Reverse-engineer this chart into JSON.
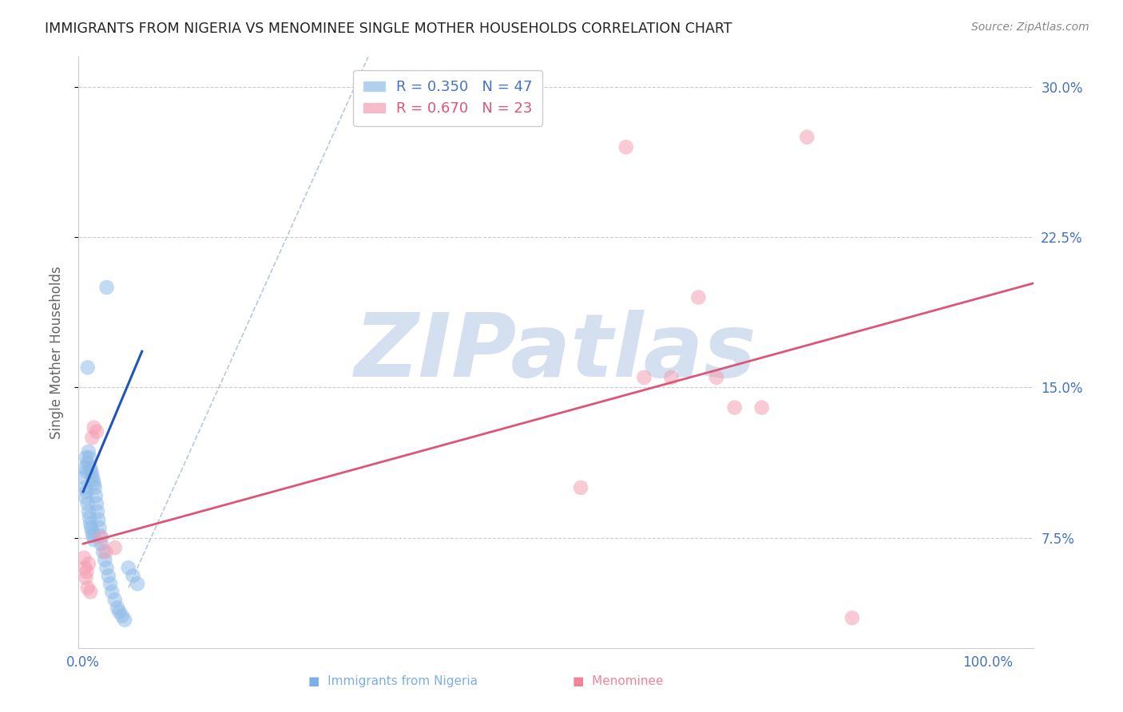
{
  "title": "IMMIGRANTS FROM NIGERIA VS MENOMINEE SINGLE MOTHER HOUSEHOLDS CORRELATION CHART",
  "source": "Source: ZipAtlas.com",
  "ylabel": "Single Mother Households",
  "xlim": [
    -0.005,
    1.05
  ],
  "ylim": [
    0.02,
    0.315
  ],
  "right_ytick_vals": [
    0.075,
    0.15,
    0.225,
    0.3
  ],
  "right_yticklabels": [
    "7.5%",
    "15.0%",
    "22.5%",
    "30.0%"
  ],
  "xtick_vals": [
    0.0,
    0.25,
    0.5,
    0.75,
    1.0
  ],
  "xticklabels": [
    "0.0%",
    "",
    "",
    "",
    "100.0%"
  ],
  "blue_scatter_x": [
    0.001,
    0.002,
    0.002,
    0.003,
    0.003,
    0.004,
    0.004,
    0.005,
    0.005,
    0.006,
    0.006,
    0.007,
    0.007,
    0.008,
    0.008,
    0.009,
    0.009,
    0.01,
    0.01,
    0.011,
    0.011,
    0.012,
    0.012,
    0.013,
    0.014,
    0.015,
    0.016,
    0.017,
    0.018,
    0.019,
    0.02,
    0.022,
    0.024,
    0.026,
    0.028,
    0.03,
    0.032,
    0.035,
    0.038,
    0.04,
    0.043,
    0.046,
    0.05,
    0.055,
    0.06,
    0.026,
    0.005
  ],
  "blue_scatter_y": [
    0.105,
    0.11,
    0.1,
    0.115,
    0.095,
    0.108,
    0.098,
    0.112,
    0.092,
    0.118,
    0.088,
    0.115,
    0.085,
    0.11,
    0.082,
    0.108,
    0.08,
    0.106,
    0.078,
    0.104,
    0.076,
    0.102,
    0.074,
    0.1,
    0.096,
    0.092,
    0.088,
    0.084,
    0.08,
    0.076,
    0.072,
    0.068,
    0.064,
    0.06,
    0.056,
    0.052,
    0.048,
    0.044,
    0.04,
    0.038,
    0.036,
    0.034,
    0.06,
    0.056,
    0.052,
    0.2,
    0.16
  ],
  "pink_scatter_x": [
    0.001,
    0.002,
    0.003,
    0.004,
    0.005,
    0.006,
    0.008,
    0.01,
    0.012,
    0.015,
    0.02,
    0.025,
    0.035,
    0.55,
    0.6,
    0.62,
    0.65,
    0.68,
    0.7,
    0.72,
    0.75,
    0.8,
    0.85
  ],
  "pink_scatter_y": [
    0.065,
    0.06,
    0.055,
    0.058,
    0.05,
    0.062,
    0.048,
    0.125,
    0.13,
    0.128,
    0.075,
    0.068,
    0.07,
    0.1,
    0.27,
    0.155,
    0.155,
    0.195,
    0.155,
    0.14,
    0.14,
    0.275,
    0.035
  ],
  "blue_line_x": [
    0.0,
    0.065
  ],
  "blue_line_y": [
    0.098,
    0.168
  ],
  "pink_line_x": [
    0.0,
    1.05
  ],
  "pink_line_y": [
    0.072,
    0.202
  ],
  "diag_line_x": [
    0.05,
    0.315
  ],
  "diag_line_y": [
    0.05,
    0.315
  ],
  "watermark_text": "ZIPatlas",
  "watermark_color": "#d0dcee",
  "bg_color": "#ffffff",
  "grid_color": "#cccccc",
  "blue_dot_color": "#90bce8",
  "pink_dot_color": "#f4a0b4",
  "blue_line_color": "#2255bb",
  "pink_line_color": "#dd5577",
  "diag_line_color": "#b8c8dc",
  "tick_label_color": "#4472c4",
  "title_color": "#222222",
  "source_color": "#888888",
  "ylabel_color": "#666666",
  "legend_border_color": "#cccccc",
  "legend_blue_text_color": "#4472c4",
  "legend_pink_text_color": "#dd5577",
  "bottom_legend_blue_color": "#7ab0e8",
  "bottom_legend_pink_color": "#f0849a"
}
